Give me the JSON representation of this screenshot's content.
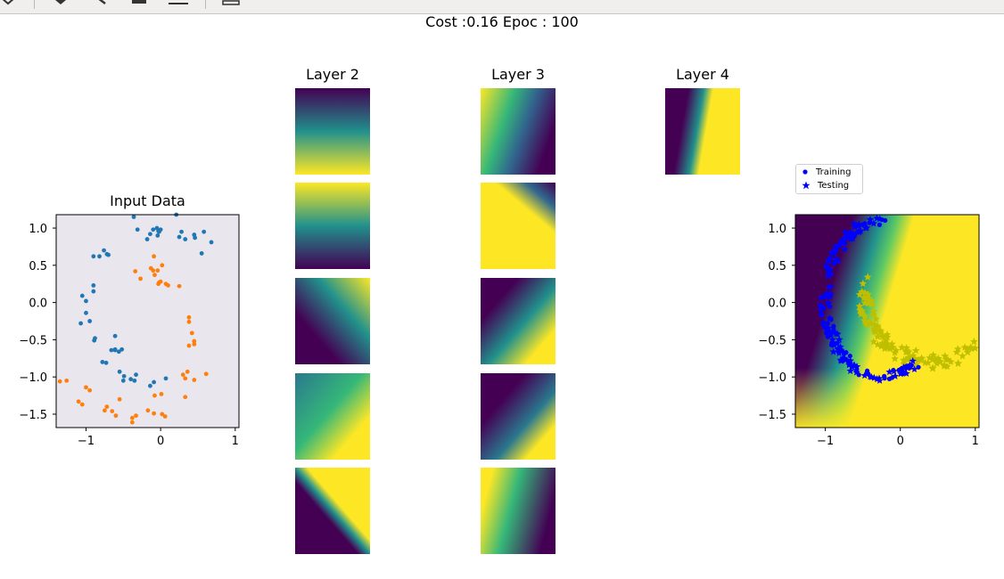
{
  "window": {
    "suptitle": "Cost :0.16 Epoc : 100"
  },
  "toolbar": {
    "buttons": [
      "down-arrow-icon",
      "back-icon",
      "configure-icon",
      "subplots-icon",
      "save-icon"
    ]
  },
  "colors": {
    "class0": "#1f77b4",
    "class1": "#ff7f0e",
    "input_bg": "#eae6ee",
    "train": "#0000ff",
    "test": "#bfbf00",
    "viridis_low": "#440154",
    "viridis_mid": "#21918c",
    "viridis_high": "#fde725"
  },
  "layers": {
    "layer2": {
      "title": "Layer 2",
      "tiles": [
        "viridis gradient: dark top to yellow bottom",
        "viridis gradient: yellow top to dark bottom",
        "viridis diagonal: dark lower-left to yellow upper-right",
        "viridis diagonal: teal upper-left to yellow lower-right",
        "viridis sharp diagonal: dark lower-left, yellow upper-right"
      ]
    },
    "layer3": {
      "title": "Layer 3",
      "tiles": [
        "yellow left wedge, dark right",
        "yellow body with dark top-right band",
        "dark top-left, yellow bottom-right wedge",
        "dark to yellow diagonal",
        "yellow left, dark right wedge"
      ]
    },
    "layer4": {
      "title": "Layer 4",
      "tiles": [
        "dark left, yellow right wedge"
      ]
    }
  },
  "chart_data": [
    {
      "type": "scatter",
      "title": "Input Data",
      "xlim": [
        -1.4,
        1.05
      ],
      "ylim": [
        -1.68,
        1.18
      ],
      "xticks": [
        "−1",
        "0",
        "1"
      ],
      "yticks": [
        "1.0",
        "0.5",
        "0.0",
        "−0.5",
        "−1.0",
        "−1.5"
      ],
      "xtick_values": [
        -1,
        0,
        1
      ],
      "ytick_values": [
        1.0,
        0.5,
        0.0,
        -0.5,
        -1.0,
        -1.5
      ],
      "series": [
        {
          "color_key": "class0",
          "x": [
            -0.36,
            -0.31,
            -0.1,
            -0.14,
            -0.05,
            -0.03,
            -0.02,
            0.0,
            -0.04,
            0.21,
            0.25,
            0.28,
            0.33,
            0.45,
            0.46,
            0.58,
            0.68,
            0.55,
            -0.18,
            -0.9,
            -0.82,
            -0.76,
            -0.72,
            -0.7,
            -0.9,
            -0.9,
            -1.05,
            -1.0,
            -1.07,
            -1.0,
            -0.88,
            -0.89,
            -0.95,
            -0.61,
            -0.61,
            -0.66,
            -0.56,
            -0.52,
            -0.78,
            -0.73,
            -0.55,
            -0.49,
            -0.33,
            -0.09,
            -0.4,
            -0.5,
            -0.35,
            0.07,
            -0.14,
            -0.61
          ],
          "y": [
            1.15,
            0.98,
            0.98,
            0.92,
            1.0,
            0.96,
            0.95,
            0.98,
            0.9,
            1.18,
            0.88,
            0.95,
            0.85,
            0.91,
            0.87,
            0.95,
            0.81,
            0.66,
            0.85,
            0.62,
            0.62,
            0.7,
            0.65,
            0.64,
            0.23,
            0.15,
            0.09,
            0.02,
            -0.28,
            -0.14,
            -0.48,
            -0.51,
            -0.25,
            -0.45,
            -0.64,
            -0.64,
            -0.66,
            -0.63,
            -0.8,
            -0.81,
            -0.93,
            -0.99,
            -0.97,
            -1.07,
            -1.03,
            -1.05,
            -1.05,
            -1.02,
            -1.12,
            -0.63
          ]
        },
        {
          "color_key": "class1",
          "x": [
            -0.34,
            -0.27,
            -0.13,
            -0.1,
            -0.08,
            -0.02,
            -0.03,
            0.0,
            0.07,
            0.1,
            -0.09,
            -0.04,
            0.02,
            0.25,
            0.38,
            0.38,
            0.42,
            0.45,
            0.45,
            0.38,
            0.36,
            0.3,
            0.33,
            0.45,
            0.61,
            0.33,
            -0.08,
            0.01,
            -1.35,
            -1.26,
            -1.0,
            -0.95,
            -1.1,
            -1.05,
            -0.72,
            -0.65,
            -0.55,
            -0.6,
            -0.38,
            -0.33,
            -0.17,
            -0.09,
            0.02,
            0.06,
            -0.38,
            -0.75
          ],
          "y": [
            0.42,
            0.32,
            0.46,
            0.43,
            0.37,
            0.27,
            0.25,
            0.28,
            0.25,
            0.23,
            0.62,
            0.43,
            0.5,
            0.22,
            -0.2,
            -0.26,
            -0.41,
            -0.52,
            -0.56,
            -0.58,
            -0.93,
            -0.97,
            -1.02,
            -1.04,
            -0.96,
            -1.27,
            -1.25,
            -1.23,
            -1.06,
            -1.05,
            -1.14,
            -1.18,
            -1.33,
            -1.37,
            -1.4,
            -1.46,
            -1.3,
            -1.52,
            -1.55,
            -1.52,
            -1.45,
            -1.49,
            -1.5,
            -1.53,
            -1.61,
            -1.45
          ]
        }
      ]
    },
    {
      "type": "heatmap",
      "title": "",
      "xlim": [
        -1.4,
        1.05
      ],
      "ylim": [
        -1.68,
        1.18
      ],
      "xticks": [
        "−1",
        "0",
        "1"
      ],
      "yticks": [
        "1.0",
        "0.5",
        "0.0",
        "−0.5",
        "−1.0",
        "−1.5"
      ],
      "xtick_values": [
        -1,
        0,
        1
      ],
      "ytick_values": [
        1.0,
        0.5,
        0.0,
        -0.5,
        -1.0,
        -1.5
      ],
      "legend": {
        "placement": "upper-left",
        "entries": [
          "Training",
          "Testing"
        ]
      },
      "series": [
        {
          "name": "Training",
          "marker": "circle",
          "color_key": "train",
          "x": [],
          "y": []
        },
        {
          "name": "Testing",
          "marker": "star",
          "color_key": "test",
          "x": [],
          "y": []
        }
      ],
      "background": "viridis decision surface"
    }
  ]
}
